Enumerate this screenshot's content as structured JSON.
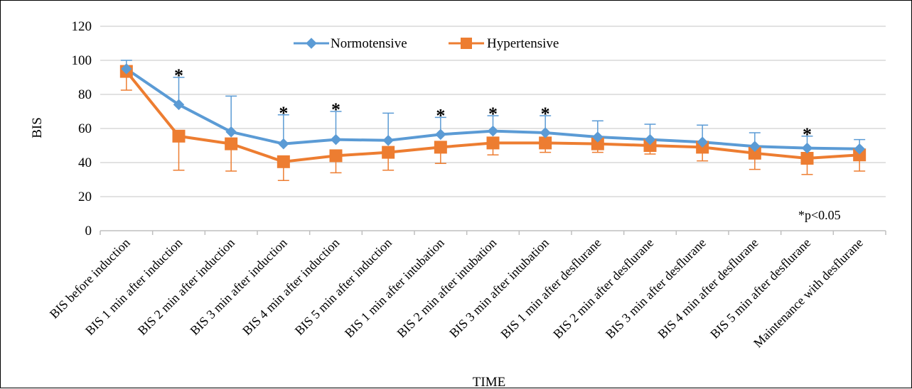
{
  "chart_data": {
    "type": "line",
    "xlabel": "TIME",
    "ylabel": "BIS",
    "ylim": [
      0,
      120
    ],
    "yticks": [
      0,
      20,
      40,
      60,
      80,
      100,
      120
    ],
    "grid": true,
    "legend_position": "top-center",
    "note": "*p<0.05",
    "significance_marker": "*",
    "significant_indices": [
      1,
      3,
      4,
      6,
      7,
      8,
      13
    ],
    "categories": [
      "BIS before induction",
      "BIS 1 min after induction",
      "BIS 2 min after induction",
      "BIS 3 min after induction",
      "BIS 4 min after induction",
      "BIS 5 min after induction",
      "BIS 1 min after intubation",
      "BIS 2 min after intubation",
      "BIS 3 min after intubation",
      "BIS 1 min after desflurane",
      "BIS 2 min after desflurane",
      "BIS 3 min after desflurane",
      "BIS 4 min after desflurane",
      "BIS 5 min after desflurane",
      "Maintenance with desflurane"
    ],
    "series": [
      {
        "name": "Normotensive",
        "color": "#5b9bd5",
        "marker": "diamond",
        "values": [
          95,
          74,
          58,
          51,
          53.5,
          53,
          56.5,
          58.5,
          57.5,
          55,
          53.5,
          52,
          49.5,
          48.5,
          48
        ],
        "error_up": [
          5,
          16,
          21,
          17,
          16.5,
          16,
          10,
          9,
          10,
          9.5,
          9,
          10,
          8,
          7,
          5.5
        ]
      },
      {
        "name": "Hypertensive",
        "color": "#ed7d31",
        "marker": "square",
        "values": [
          93.5,
          55.5,
          51,
          40.5,
          44,
          46,
          49,
          51.5,
          51.5,
          51,
          50,
          49,
          45.5,
          42.5,
          44.5
        ],
        "error_down": [
          11,
          20,
          16,
          11,
          10,
          10.5,
          9.5,
          7,
          5.5,
          5,
          5,
          8,
          9.5,
          9.5,
          9.5
        ]
      }
    ]
  }
}
